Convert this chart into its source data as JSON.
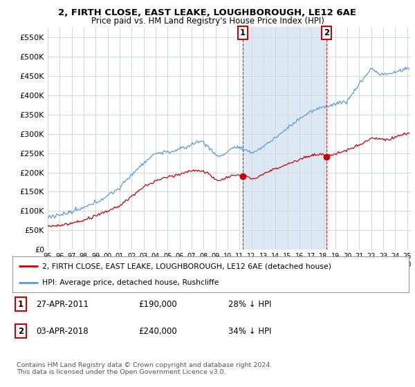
{
  "title": "2, FIRTH CLOSE, EAST LEAKE, LOUGHBOROUGH, LE12 6AE",
  "subtitle": "Price paid vs. HM Land Registry's House Price Index (HPI)",
  "ylim": [
    0,
    577000
  ],
  "yticks": [
    0,
    50000,
    100000,
    150000,
    200000,
    250000,
    300000,
    350000,
    400000,
    450000,
    500000,
    550000
  ],
  "xlim_start": 1995.0,
  "xlim_end": 2025.3,
  "hpi_color": "#5b9bd5",
  "hpi_fill_color": "#dce9f5",
  "price_color": "#cc0000",
  "marker_color": "#cc0000",
  "vline_color": "#cc0000",
  "grid_color": "#d0d8e0",
  "purchase1_x": 2011.25,
  "purchase1_y": 190000,
  "purchase2_x": 2018.25,
  "purchase2_y": 240000,
  "legend_line1": "2, FIRTH CLOSE, EAST LEAKE, LOUGHBOROUGH, LE12 6AE (detached house)",
  "legend_line2": "HPI: Average price, detached house, Rushcliffe",
  "footnote": "Contains HM Land Registry data © Crown copyright and database right 2024.\nThis data is licensed under the Open Government Licence v3.0.",
  "background_color": "#ffffff"
}
